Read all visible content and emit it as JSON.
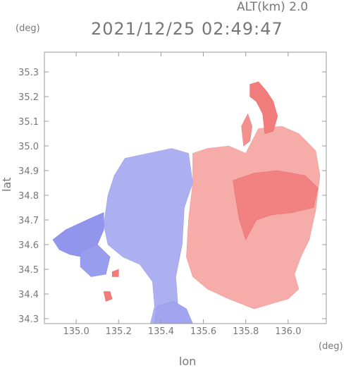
{
  "header": {
    "altitude": "ALT(km) 2.0",
    "timestamp": "2021/12/25 02:49:47",
    "unit_y": "(deg)",
    "unit_x": "(deg)"
  },
  "chart_data": {
    "type": "heatmap",
    "title": "",
    "xlabel": "lon",
    "ylabel": "lat",
    "xlim": [
      134.85,
      136.18
    ],
    "ylim": [
      34.28,
      35.38
    ],
    "xticks": [
      135.0,
      135.2,
      135.4,
      135.6,
      135.8,
      136.0
    ],
    "xtick_labels": [
      "135.0",
      "135.2",
      "135.4",
      "135.6",
      "135.8",
      "136.0"
    ],
    "yticks": [
      34.3,
      34.4,
      34.5,
      34.6,
      34.7,
      34.8,
      34.9,
      35.0,
      35.1,
      35.2,
      35.3
    ],
    "ytick_labels": [
      "34.3",
      "34.4",
      "34.5",
      "34.6",
      "34.7",
      "34.8",
      "34.9",
      "35.0",
      "35.1",
      "35.2",
      "35.3"
    ],
    "colors": {
      "negative": "#7a7fe8",
      "negative_light": "#c7cbf5",
      "neutral": "#ffffff",
      "positive_light": "#f9c9c6",
      "positive": "#ee6a6a"
    },
    "regions": [
      {
        "name": "blue-main",
        "sign": "negative",
        "intensity": 0.35,
        "points": [
          [
            135.23,
            34.95
          ],
          [
            135.45,
            34.99
          ],
          [
            135.53,
            34.97
          ],
          [
            135.55,
            34.85
          ],
          [
            135.51,
            34.75
          ],
          [
            135.5,
            34.6
          ],
          [
            135.47,
            34.47
          ],
          [
            135.48,
            34.35
          ],
          [
            135.45,
            34.28
          ],
          [
            135.35,
            34.28
          ],
          [
            135.37,
            34.35
          ],
          [
            135.36,
            34.45
          ],
          [
            135.3,
            34.52
          ],
          [
            135.22,
            34.55
          ],
          [
            135.15,
            34.6
          ],
          [
            135.13,
            34.68
          ],
          [
            135.15,
            34.8
          ],
          [
            135.18,
            34.88
          ]
        ]
      },
      {
        "name": "blue-west",
        "sign": "negative",
        "intensity": 0.7,
        "points": [
          [
            134.89,
            34.62
          ],
          [
            134.95,
            34.66
          ],
          [
            135.05,
            34.7
          ],
          [
            135.13,
            34.73
          ],
          [
            135.13,
            34.66
          ],
          [
            135.1,
            34.6
          ],
          [
            135.03,
            34.55
          ],
          [
            134.97,
            34.56
          ],
          [
            134.92,
            34.58
          ]
        ]
      },
      {
        "name": "blue-southwest",
        "sign": "negative",
        "intensity": 0.6,
        "points": [
          [
            135.02,
            34.57
          ],
          [
            135.1,
            34.6
          ],
          [
            135.16,
            34.55
          ],
          [
            135.14,
            34.48
          ],
          [
            135.07,
            34.47
          ],
          [
            135.02,
            34.51
          ]
        ]
      },
      {
        "name": "blue-south",
        "sign": "negative",
        "intensity": 0.5,
        "points": [
          [
            135.38,
            34.35
          ],
          [
            135.46,
            34.37
          ],
          [
            135.52,
            34.34
          ],
          [
            135.55,
            34.28
          ],
          [
            135.37,
            34.28
          ]
        ]
      },
      {
        "name": "red-main",
        "sign": "positive",
        "intensity": 0.3,
        "points": [
          [
            135.55,
            34.97
          ],
          [
            135.62,
            34.99
          ],
          [
            135.72,
            35.0
          ],
          [
            135.8,
            34.97
          ],
          [
            135.86,
            35.07
          ],
          [
            135.97,
            35.08
          ],
          [
            136.05,
            35.05
          ],
          [
            136.13,
            34.98
          ],
          [
            136.15,
            34.88
          ],
          [
            136.13,
            34.74
          ],
          [
            136.1,
            34.62
          ],
          [
            136.06,
            34.55
          ],
          [
            136.03,
            34.48
          ],
          [
            136.05,
            34.42
          ],
          [
            136.0,
            34.38
          ],
          [
            135.92,
            34.36
          ],
          [
            135.84,
            34.34
          ],
          [
            135.72,
            34.38
          ],
          [
            135.62,
            34.42
          ],
          [
            135.55,
            34.47
          ],
          [
            135.52,
            34.55
          ],
          [
            135.53,
            34.7
          ],
          [
            135.55,
            34.85
          ]
        ]
      },
      {
        "name": "red-core",
        "sign": "positive",
        "intensity": 0.75,
        "points": [
          [
            135.74,
            34.86
          ],
          [
            135.84,
            34.89
          ],
          [
            135.95,
            34.9
          ],
          [
            136.08,
            34.88
          ],
          [
            136.14,
            34.83
          ],
          [
            136.12,
            34.75
          ],
          [
            136.02,
            34.73
          ],
          [
            135.92,
            34.72
          ],
          [
            135.85,
            34.7
          ],
          [
            135.8,
            34.62
          ],
          [
            135.77,
            34.7
          ],
          [
            135.75,
            34.8
          ]
        ]
      },
      {
        "name": "red-north",
        "sign": "positive",
        "intensity": 0.8,
        "points": [
          [
            135.82,
            35.25
          ],
          [
            135.86,
            35.26
          ],
          [
            135.9,
            35.22
          ],
          [
            135.93,
            35.18
          ],
          [
            135.95,
            35.12
          ],
          [
            135.93,
            35.06
          ],
          [
            135.89,
            35.05
          ],
          [
            135.88,
            35.13
          ],
          [
            135.85,
            35.18
          ],
          [
            135.82,
            35.2
          ]
        ]
      },
      {
        "name": "red-north-arm",
        "sign": "positive",
        "intensity": 0.6,
        "points": [
          [
            135.78,
            35.08
          ],
          [
            135.81,
            35.13
          ],
          [
            135.83,
            35.08
          ],
          [
            135.82,
            35.02
          ],
          [
            135.79,
            35.0
          ]
        ]
      },
      {
        "name": "red-spot-1",
        "sign": "positive",
        "intensity": 0.8,
        "points": [
          [
            135.13,
            34.41
          ],
          [
            135.16,
            34.41
          ],
          [
            135.17,
            34.38
          ],
          [
            135.14,
            34.37
          ]
        ]
      },
      {
        "name": "red-spot-2",
        "sign": "positive",
        "intensity": 0.8,
        "points": [
          [
            135.17,
            34.49
          ],
          [
            135.2,
            34.5
          ],
          [
            135.2,
            34.47
          ],
          [
            135.17,
            34.47
          ]
        ]
      }
    ]
  }
}
